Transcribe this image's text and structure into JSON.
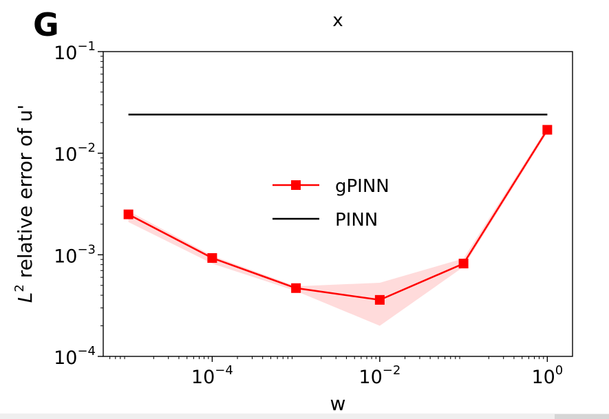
{
  "panel_label": "G",
  "chart_data": {
    "type": "line",
    "title": "x",
    "xlabel": "w",
    "ylabel": "relative error of u'",
    "ylabel_math": {
      "base": "L",
      "exp": "2"
    },
    "xscale": "log",
    "yscale": "log",
    "xlim": [
      5e-06,
      2.0
    ],
    "ylim": [
      0.0001,
      0.1
    ],
    "x_ticks": [
      {
        "value": 0.0001,
        "base": "10",
        "exp": "−4"
      },
      {
        "value": 0.01,
        "base": "10",
        "exp": "−2"
      },
      {
        "value": 1,
        "base": "10",
        "exp": "0"
      }
    ],
    "y_ticks": [
      {
        "value": 0.0001,
        "base": "10",
        "exp": "−4"
      },
      {
        "value": 0.001,
        "base": "10",
        "exp": "−3"
      },
      {
        "value": 0.01,
        "base": "10",
        "exp": "−2"
      },
      {
        "value": 0.1,
        "base": "10",
        "exp": "−1"
      }
    ],
    "series": [
      {
        "name": "gPINN",
        "color": "#ff0000",
        "marker": "square",
        "x": [
          1e-05,
          0.0001,
          0.001,
          0.01,
          0.1,
          1
        ],
        "y": [
          0.0025,
          0.00093,
          0.00047,
          0.00036,
          0.00082,
          0.017
        ],
        "band_lower": [
          0.0021,
          0.00082,
          0.00044,
          0.0002,
          0.00076,
          0.016
        ],
        "band_upper": [
          0.0027,
          0.00098,
          0.00049,
          0.00053,
          0.00092,
          0.018
        ],
        "band_color": "#ffc8c8"
      },
      {
        "name": "PINN",
        "color": "#000000",
        "marker": "none",
        "x": [
          1e-05,
          1
        ],
        "y": [
          0.024,
          0.024
        ]
      }
    ],
    "legend_position": "center"
  }
}
